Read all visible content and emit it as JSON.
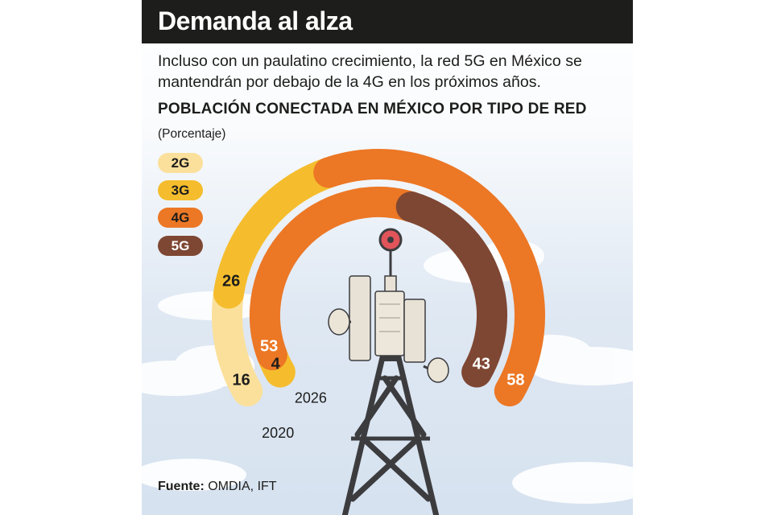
{
  "header": {
    "title": "Demanda al alza",
    "subtitle": "Incluso con un paulatino crecimiento, la red 5G en México se mantendrán por debajo de la 4G en los próximos años.",
    "chart_title": "POBLACIÓN CONECTADA EN MÉXICO POR TIPO DE RED",
    "unit": "(Porcentaje)"
  },
  "footer": {
    "source_label": "Fuente:",
    "source_text": " OMDIA, IFT"
  },
  "colors": {
    "2G": "#fbe09c",
    "3G": "#f5bd2d",
    "4G": "#ec7725",
    "5G": "#7e4733"
  },
  "chart_data": {
    "type": "radial-stacked-bar",
    "title": "POBLACIÓN CONECTADA EN MÉXICO POR TIPO DE RED",
    "unit": "(Porcentaje)",
    "legend": [
      "2G",
      "3G",
      "4G",
      "5G"
    ],
    "legend_position": "top-left",
    "series": [
      {
        "year": "2020",
        "segments": [
          {
            "name": "2G",
            "value": 16
          },
          {
            "name": "3G",
            "value": 26
          },
          {
            "name": "4G",
            "value": 58
          },
          {
            "name": "5G",
            "value": 0
          }
        ]
      },
      {
        "year": "2026",
        "segments": [
          {
            "name": "2G",
            "value": 0
          },
          {
            "name": "3G",
            "value": 4
          },
          {
            "name": "4G",
            "value": 53
          },
          {
            "name": "5G",
            "value": 43
          }
        ]
      }
    ]
  }
}
